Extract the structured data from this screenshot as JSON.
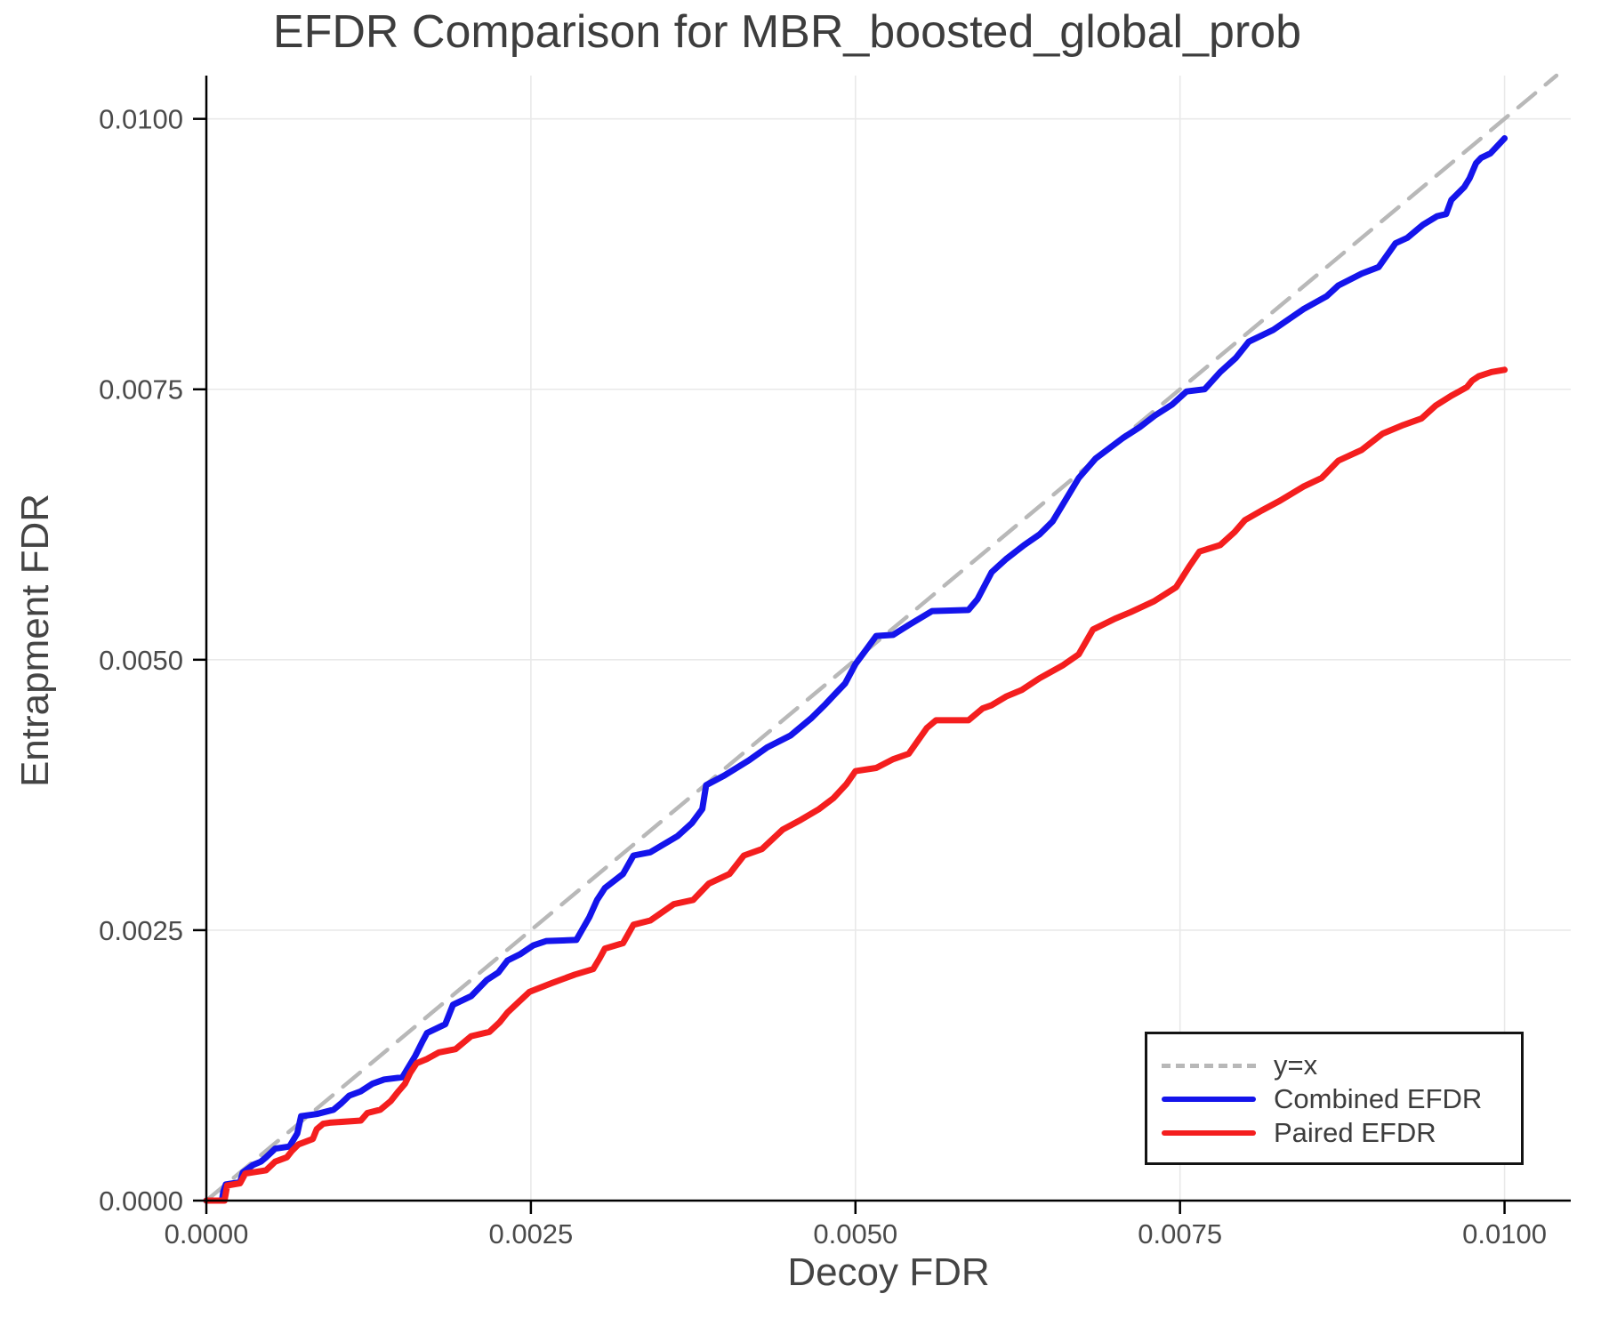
{
  "chart": {
    "title": "EFDR Comparison for MBR_boosted_global_prob",
    "xlabel": "Decoy FDR",
    "ylabel": "Entrapment FDR"
  },
  "legend": {
    "items": [
      {
        "label": "y=x",
        "color": "#b8b8b8",
        "style": "dashed"
      },
      {
        "label": "Combined EFDR",
        "color": "#1414eb",
        "style": "solid"
      },
      {
        "label": "Paired EFDR",
        "color": "#f41e1e",
        "style": "solid"
      }
    ]
  },
  "chart_data": {
    "type": "line",
    "title": "EFDR Comparison for MBR_boosted_global_prob",
    "xlabel": "Decoy FDR",
    "ylabel": "Entrapment FDR",
    "xlim": [
      0,
      0.01051
    ],
    "ylim": [
      0,
      0.0104
    ],
    "grid": true,
    "legend_position": "lower right",
    "axis_color": "#000000",
    "grid_color": "#e9e9e9",
    "tick_label_color": "#4a4a4a",
    "x_ticks": {
      "values": [
        0,
        0.0025,
        0.005,
        0.0075,
        0.01
      ],
      "labels": [
        "0.0000",
        "0.0025",
        "0.0050",
        "0.0075",
        "0.0100"
      ]
    },
    "y_ticks": {
      "values": [
        0,
        0.0025,
        0.005,
        0.0075,
        0.01
      ],
      "labels": [
        "0.0000",
        "0.0025",
        "0.0050",
        "0.0075",
        "0.0100"
      ]
    },
    "series": [
      {
        "name": "y=x",
        "color": "#b8b8b8",
        "width": 4.5,
        "dash": [
          25,
          15
        ],
        "points": [
          [
            0,
            0
          ],
          [
            0.0104,
            0.0104
          ]
        ]
      },
      {
        "name": "Combined EFDR",
        "color": "#1414eb",
        "width": 7,
        "dash": null,
        "points": [
          [
            0,
            0
          ],
          [
            0.00012,
            0
          ],
          [
            0.00013,
            8e-05
          ],
          [
            0.00015,
            0.00015
          ],
          [
            0.00026,
            0.00017
          ],
          [
            0.00028,
            0.00026
          ],
          [
            0.00036,
            0.00033
          ],
          [
            0.00042,
            0.00036
          ],
          [
            0.00046,
            0.0004
          ],
          [
            0.00053,
            0.00048
          ],
          [
            0.00064,
            0.0005
          ],
          [
            0.0007,
            0.00062
          ],
          [
            0.00073,
            0.00078
          ],
          [
            0.00085,
            0.0008
          ],
          [
            0.00098,
            0.00084
          ],
          [
            0.00104,
            0.0009
          ],
          [
            0.0011,
            0.00097
          ],
          [
            0.00119,
            0.00101
          ],
          [
            0.00128,
            0.00108
          ],
          [
            0.00137,
            0.00112
          ],
          [
            0.00151,
            0.00114
          ],
          [
            0.00156,
            0.00124
          ],
          [
            0.00161,
            0.00134
          ],
          [
            0.00166,
            0.00146
          ],
          [
            0.0017,
            0.00155
          ],
          [
            0.00184,
            0.00163
          ],
          [
            0.0019,
            0.00181
          ],
          [
            0.00204,
            0.00189
          ],
          [
            0.00216,
            0.00204
          ],
          [
            0.00225,
            0.00211
          ],
          [
            0.00232,
            0.00222
          ],
          [
            0.00242,
            0.00228
          ],
          [
            0.00252,
            0.00236
          ],
          [
            0.00262,
            0.0024
          ],
          [
            0.00285,
            0.00241
          ],
          [
            0.00295,
            0.00262
          ],
          [
            0.00301,
            0.00278
          ],
          [
            0.00307,
            0.00289
          ],
          [
            0.00321,
            0.00302
          ],
          [
            0.00329,
            0.00319
          ],
          [
            0.00342,
            0.00322
          ],
          [
            0.00363,
            0.00337
          ],
          [
            0.00374,
            0.00349
          ],
          [
            0.00382,
            0.00362
          ],
          [
            0.00385,
            0.00384
          ],
          [
            0.00399,
            0.00393
          ],
          [
            0.00418,
            0.00407
          ],
          [
            0.00432,
            0.00419
          ],
          [
            0.0045,
            0.0043
          ],
          [
            0.00466,
            0.00446
          ],
          [
            0.00477,
            0.00459
          ],
          [
            0.00484,
            0.00468
          ],
          [
            0.00492,
            0.00478
          ],
          [
            0.005,
            0.00496
          ],
          [
            0.00508,
            0.00509
          ],
          [
            0.00516,
            0.00522
          ],
          [
            0.00529,
            0.00523
          ],
          [
            0.00541,
            0.00532
          ],
          [
            0.00548,
            0.00537
          ],
          [
            0.00559,
            0.00545
          ],
          [
            0.00587,
            0.00546
          ],
          [
            0.00594,
            0.00556
          ],
          [
            0.00605,
            0.00581
          ],
          [
            0.00616,
            0.00593
          ],
          [
            0.0063,
            0.00606
          ],
          [
            0.00642,
            0.00616
          ],
          [
            0.00652,
            0.00628
          ],
          [
            0.00662,
            0.00648
          ],
          [
            0.00672,
            0.00668
          ],
          [
            0.00685,
            0.00686
          ],
          [
            0.00706,
            0.00705
          ],
          [
            0.00719,
            0.00715
          ],
          [
            0.00731,
            0.00726
          ],
          [
            0.00744,
            0.00736
          ],
          [
            0.00755,
            0.00748
          ],
          [
            0.00769,
            0.0075
          ],
          [
            0.00781,
            0.00766
          ],
          [
            0.00793,
            0.00779
          ],
          [
            0.00803,
            0.00794
          ],
          [
            0.00822,
            0.00805
          ],
          [
            0.00845,
            0.00824
          ],
          [
            0.00863,
            0.00836
          ],
          [
            0.00872,
            0.00846
          ],
          [
            0.0089,
            0.00857
          ],
          [
            0.00903,
            0.00863
          ],
          [
            0.00916,
            0.00885
          ],
          [
            0.00925,
            0.0089
          ],
          [
            0.00937,
            0.00902
          ],
          [
            0.00948,
            0.0091
          ],
          [
            0.00955,
            0.00912
          ],
          [
            0.00959,
            0.00925
          ],
          [
            0.00964,
            0.00931
          ],
          [
            0.00969,
            0.00937
          ],
          [
            0.00973,
            0.00945
          ],
          [
            0.00978,
            0.00959
          ],
          [
            0.00982,
            0.00964
          ],
          [
            0.00989,
            0.00968
          ],
          [
            0.00993,
            0.00973
          ],
          [
            0.01,
            0.00982
          ]
        ]
      },
      {
        "name": "Paired EFDR",
        "color": "#f41e1e",
        "width": 7,
        "dash": null,
        "points": [
          [
            0,
            0
          ],
          [
            0.00014,
            0
          ],
          [
            0.00016,
            0.00014
          ],
          [
            0.00026,
            0.00016
          ],
          [
            0.0003,
            0.00025
          ],
          [
            0.00046,
            0.00028
          ],
          [
            0.00053,
            0.00036
          ],
          [
            0.00062,
            0.0004
          ],
          [
            0.00066,
            0.00046
          ],
          [
            0.00071,
            0.00052
          ],
          [
            0.00082,
            0.00057
          ],
          [
            0.00085,
            0.00066
          ],
          [
            0.0009,
            0.00071
          ],
          [
            0.00095,
            0.00072
          ],
          [
            0.00119,
            0.00074
          ],
          [
            0.00124,
            0.00081
          ],
          [
            0.00134,
            0.00084
          ],
          [
            0.00142,
            0.00092
          ],
          [
            0.00148,
            0.00101
          ],
          [
            0.00153,
            0.00108
          ],
          [
            0.00157,
            0.00118
          ],
          [
            0.00162,
            0.00127
          ],
          [
            0.0017,
            0.00131
          ],
          [
            0.00179,
            0.00137
          ],
          [
            0.00192,
            0.0014
          ],
          [
            0.00204,
            0.00152
          ],
          [
            0.00218,
            0.00156
          ],
          [
            0.00226,
            0.00165
          ],
          [
            0.00232,
            0.00174
          ],
          [
            0.0024,
            0.00183
          ],
          [
            0.00249,
            0.00193
          ],
          [
            0.00266,
            0.00201
          ],
          [
            0.00284,
            0.00209
          ],
          [
            0.00298,
            0.00214
          ],
          [
            0.00303,
            0.00224
          ],
          [
            0.00307,
            0.00233
          ],
          [
            0.00321,
            0.00238
          ],
          [
            0.00329,
            0.00255
          ],
          [
            0.00342,
            0.00259
          ],
          [
            0.0036,
            0.00274
          ],
          [
            0.00375,
            0.00278
          ],
          [
            0.00387,
            0.00293
          ],
          [
            0.00403,
            0.00302
          ],
          [
            0.00414,
            0.00319
          ],
          [
            0.00428,
            0.00325
          ],
          [
            0.00444,
            0.00343
          ],
          [
            0.00458,
            0.00352
          ],
          [
            0.00472,
            0.00362
          ],
          [
            0.00483,
            0.00372
          ],
          [
            0.00493,
            0.00385
          ],
          [
            0.005,
            0.00397
          ],
          [
            0.00516,
            0.004
          ],
          [
            0.00529,
            0.00408
          ],
          [
            0.00541,
            0.00413
          ],
          [
            0.00548,
            0.00425
          ],
          [
            0.00555,
            0.00437
          ],
          [
            0.00562,
            0.00444
          ],
          [
            0.00587,
            0.00444
          ],
          [
            0.00598,
            0.00455
          ],
          [
            0.00605,
            0.00458
          ],
          [
            0.00616,
            0.00466
          ],
          [
            0.00628,
            0.00472
          ],
          [
            0.00642,
            0.00483
          ],
          [
            0.0066,
            0.00495
          ],
          [
            0.00672,
            0.00505
          ],
          [
            0.00683,
            0.00528
          ],
          [
            0.007,
            0.00538
          ],
          [
            0.00712,
            0.00544
          ],
          [
            0.0073,
            0.00554
          ],
          [
            0.00747,
            0.00567
          ],
          [
            0.00757,
            0.00586
          ],
          [
            0.00765,
            0.006
          ],
          [
            0.00781,
            0.00606
          ],
          [
            0.00792,
            0.00618
          ],
          [
            0.008,
            0.00629
          ],
          [
            0.00813,
            0.00638
          ],
          [
            0.00827,
            0.00647
          ],
          [
            0.00845,
            0.0066
          ],
          [
            0.00859,
            0.00668
          ],
          [
            0.00872,
            0.00684
          ],
          [
            0.0089,
            0.00694
          ],
          [
            0.00906,
            0.00709
          ],
          [
            0.00922,
            0.00717
          ],
          [
            0.00936,
            0.00723
          ],
          [
            0.00947,
            0.00735
          ],
          [
            0.00959,
            0.00744
          ],
          [
            0.00965,
            0.00748
          ],
          [
            0.00971,
            0.00752
          ],
          [
            0.00975,
            0.00758
          ],
          [
            0.0098,
            0.00762
          ],
          [
            0.00985,
            0.00764
          ],
          [
            0.0099,
            0.00766
          ],
          [
            0.01,
            0.00768
          ]
        ]
      }
    ]
  }
}
